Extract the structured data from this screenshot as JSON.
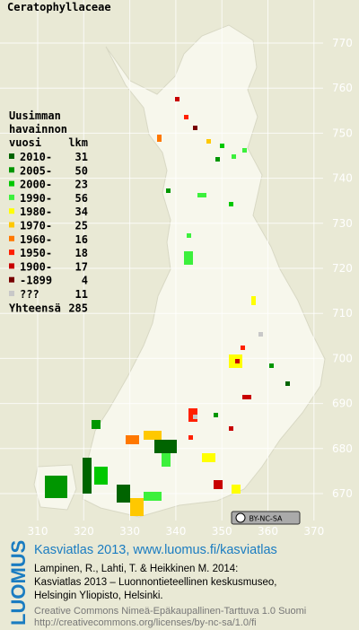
{
  "title": "Ceratophyllaceae",
  "legend": {
    "heading": [
      "Uusimman",
      "havainnon"
    ],
    "year_header": "vuosi",
    "count_header": "lkm",
    "entries": [
      {
        "label": "2010-",
        "count": 31,
        "color": "#006400"
      },
      {
        "label": "2005-",
        "count": 50,
        "color": "#009600"
      },
      {
        "label": "2000-",
        "count": 23,
        "color": "#00c800"
      },
      {
        "label": "1990-",
        "count": 56,
        "color": "#3cf03c"
      },
      {
        "label": "1980-",
        "count": 34,
        "color": "#ffff00"
      },
      {
        "label": "1970-",
        "count": 25,
        "color": "#ffc800"
      },
      {
        "label": "1960-",
        "count": 16,
        "color": "#ff7800"
      },
      {
        "label": "1950-",
        "count": 18,
        "color": "#ff2000"
      },
      {
        "label": "1900-",
        "count": 17,
        "color": "#c80000"
      },
      {
        "label": "-1899",
        "count": 4,
        "color": "#780000"
      },
      {
        "label": "???",
        "count": 11,
        "color": "#c8c8c8"
      }
    ],
    "total_label": "Yhteensä",
    "total": 285
  },
  "yticks": [
    770,
    760,
    750,
    740,
    730,
    720,
    710,
    700,
    690,
    680,
    670
  ],
  "xticks": [
    310,
    320,
    330,
    340,
    350,
    360,
    370
  ],
  "license_badge": "BY-NC-SA",
  "footer": {
    "logo": "LUOMUS",
    "link": "Kasviatlas 2013, www.luomus.fi/kasviatlas",
    "citation": [
      "Lampinen, R., Lahti, T. & Heikkinen M. 2014:",
      "Kasviatlas 2013 – Luonnontieteellinen keskusmuseo,",
      "Helsingin Yliopisto, Helsinki."
    ],
    "license": [
      "Creative Commons Nimeä-Epäkaupallinen-Tarttuva 1.0 Suomi",
      "http://creativecommons.org/licenses/by-nc-sa/1.0/fi"
    ]
  }
}
